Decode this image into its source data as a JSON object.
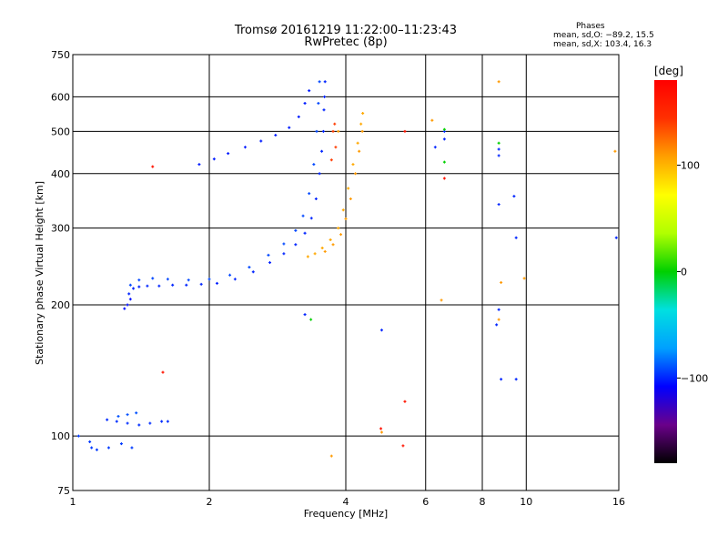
{
  "header": {
    "title": "Tromsø 20161219 11:22:00–11:23:43",
    "subtitle": "RwPretec (8p)"
  },
  "phase_info": {
    "title": "Phases",
    "line_o": "mean, sd,O: −89.2, 15.5",
    "line_x": "mean, sd,X: 103.4, 16.3"
  },
  "colorbar": {
    "unit_label": "[deg]",
    "range": [
      -180,
      180
    ],
    "tick_values": [
      100,
      0,
      -100
    ],
    "tick_labels": [
      "100",
      "0",
      "−100"
    ],
    "colors": [
      "#000000",
      "#6a008a",
      "#0000ff",
      "#00a0ff",
      "#00e0e0",
      "#00d000",
      "#b0ff00",
      "#ffff00",
      "#ffa000",
      "#ff3000",
      "#ff0000"
    ]
  },
  "chart_data": {
    "type": "scatter",
    "xlabel": "Frequency [MHz]",
    "ylabel": "Stationary phase Virtual Height [km]",
    "x_scale": "log",
    "y_scale": "log",
    "xlim": [
      1,
      16
    ],
    "ylim": [
      75,
      750
    ],
    "x_ticks": [
      1,
      2,
      4,
      6,
      8,
      10,
      16
    ],
    "x_tick_labels": [
      "1",
      "2",
      "4",
      "6",
      "8",
      "10",
      "16"
    ],
    "y_ticks": [
      75,
      100,
      200,
      300,
      400,
      500,
      600,
      750
    ],
    "y_tick_labels": [
      "75",
      "100",
      "200",
      "300",
      "400",
      "500",
      "600",
      "750"
    ],
    "grid": true,
    "color_by": "phase_deg",
    "traces": [
      {
        "points": [
          [
            1.03,
            100
          ],
          [
            1.09,
            97
          ],
          [
            1.1,
            94
          ],
          [
            1.13,
            93
          ],
          [
            1.2,
            94
          ],
          [
            1.28,
            96
          ],
          [
            1.35,
            94
          ]
        ],
        "phase": -95
      },
      {
        "points": [
          [
            1.19,
            109
          ],
          [
            1.25,
            108
          ],
          [
            1.32,
            107
          ],
          [
            1.4,
            106
          ],
          [
            1.48,
            107
          ],
          [
            1.57,
            108
          ],
          [
            1.62,
            108
          ]
        ],
        "phase": -98
      },
      {
        "points": [
          [
            1.26,
            111
          ],
          [
            1.32,
            112
          ],
          [
            1.38,
            113
          ]
        ],
        "phase": -90
      },
      {
        "points": [
          [
            1.33,
            212
          ],
          [
            1.36,
            218
          ],
          [
            1.4,
            220
          ],
          [
            1.46,
            221
          ],
          [
            1.55,
            221
          ],
          [
            1.66,
            222
          ],
          [
            1.78,
            222
          ],
          [
            1.92,
            223
          ],
          [
            2.08,
            224
          ],
          [
            2.28,
            229
          ],
          [
            2.5,
            238
          ],
          [
            2.72,
            250
          ],
          [
            2.92,
            262
          ],
          [
            3.1,
            275
          ],
          [
            3.25,
            292
          ],
          [
            3.36,
            316
          ],
          [
            3.44,
            350
          ],
          [
            3.5,
            400
          ],
          [
            3.54,
            450
          ],
          [
            3.57,
            500
          ],
          [
            3.58,
            560
          ],
          [
            3.59,
            600
          ],
          [
            3.6,
            650
          ]
        ],
        "phase": -100
      },
      {
        "points": [
          [
            1.34,
            222
          ],
          [
            1.4,
            228
          ],
          [
            1.5,
            230
          ],
          [
            1.62,
            229
          ],
          [
            1.8,
            228
          ],
          [
            2.0,
            229
          ],
          [
            2.22,
            234
          ],
          [
            2.45,
            244
          ],
          [
            2.7,
            260
          ],
          [
            2.92,
            276
          ],
          [
            3.1,
            296
          ],
          [
            3.22,
            320
          ],
          [
            3.32,
            360
          ],
          [
            3.4,
            420
          ],
          [
            3.45,
            500
          ],
          [
            3.48,
            580
          ],
          [
            3.5,
            650
          ]
        ],
        "phase": -92
      },
      {
        "points": [
          [
            1.3,
            196
          ],
          [
            1.32,
            200
          ],
          [
            1.34,
            206
          ]
        ],
        "phase": -105
      },
      {
        "points": [
          [
            1.9,
            420
          ],
          [
            2.05,
            432
          ],
          [
            2.2,
            445
          ],
          [
            2.4,
            460
          ],
          [
            2.6,
            475
          ],
          [
            2.8,
            490
          ],
          [
            3.0,
            510
          ],
          [
            3.15,
            540
          ],
          [
            3.25,
            580
          ],
          [
            3.32,
            620
          ]
        ],
        "phase": -102
      },
      {
        "points": [
          [
            3.3,
            258
          ],
          [
            3.42,
            262
          ],
          [
            3.55,
            270
          ],
          [
            3.7,
            282
          ],
          [
            3.85,
            300
          ],
          [
            3.95,
            330
          ],
          [
            4.05,
            370
          ],
          [
            4.15,
            420
          ],
          [
            4.25,
            470
          ],
          [
            4.32,
            520
          ],
          [
            4.36,
            550
          ]
        ],
        "phase": 105
      },
      {
        "points": [
          [
            3.6,
            265
          ],
          [
            3.75,
            275
          ],
          [
            3.9,
            290
          ],
          [
            4.0,
            315
          ],
          [
            4.1,
            350
          ],
          [
            4.2,
            400
          ],
          [
            4.28,
            450
          ],
          [
            4.35,
            500
          ]
        ],
        "phase": 110
      },
      {
        "points": [
          [
            3.72,
            430
          ],
          [
            3.75,
            500
          ],
          [
            3.78,
            520
          ],
          [
            3.8,
            460
          ]
        ],
        "phase": 140
      },
      {
        "points": [
          [
            6.3,
            460
          ],
          [
            6.6,
            480
          ],
          [
            6.6,
            500
          ],
          [
            8.7,
            340
          ],
          [
            8.7,
            440
          ],
          [
            8.7,
            455
          ],
          [
            9.4,
            355
          ],
          [
            9.5,
            285
          ],
          [
            8.7,
            195
          ],
          [
            8.6,
            180
          ],
          [
            8.8,
            135
          ],
          [
            9.5,
            135
          ],
          [
            15.8,
            285
          ],
          [
            4.8,
            175
          ],
          [
            3.25,
            190
          ]
        ],
        "phase": -100
      },
      {
        "points": [
          [
            8.7,
            650
          ],
          [
            6.2,
            530
          ],
          [
            15.7,
            450
          ],
          [
            3.85,
            500
          ],
          [
            9.9,
            230
          ],
          [
            8.8,
            225
          ],
          [
            8.7,
            185
          ],
          [
            3.72,
            90
          ],
          [
            4.8,
            102
          ],
          [
            6.5,
            205
          ]
        ],
        "phase": 110
      },
      {
        "points": [
          [
            3.35,
            185
          ],
          [
            6.6,
            425
          ],
          [
            8.7,
            470
          ],
          [
            6.6,
            505
          ]
        ],
        "phase": 0
      },
      {
        "points": [
          [
            5.4,
            500
          ],
          [
            5.4,
            120
          ],
          [
            6.6,
            390
          ],
          [
            4.78,
            104
          ],
          [
            5.35,
            95
          ],
          [
            1.58,
            140
          ],
          [
            1.5,
            415
          ]
        ],
        "phase": 165
      }
    ]
  }
}
